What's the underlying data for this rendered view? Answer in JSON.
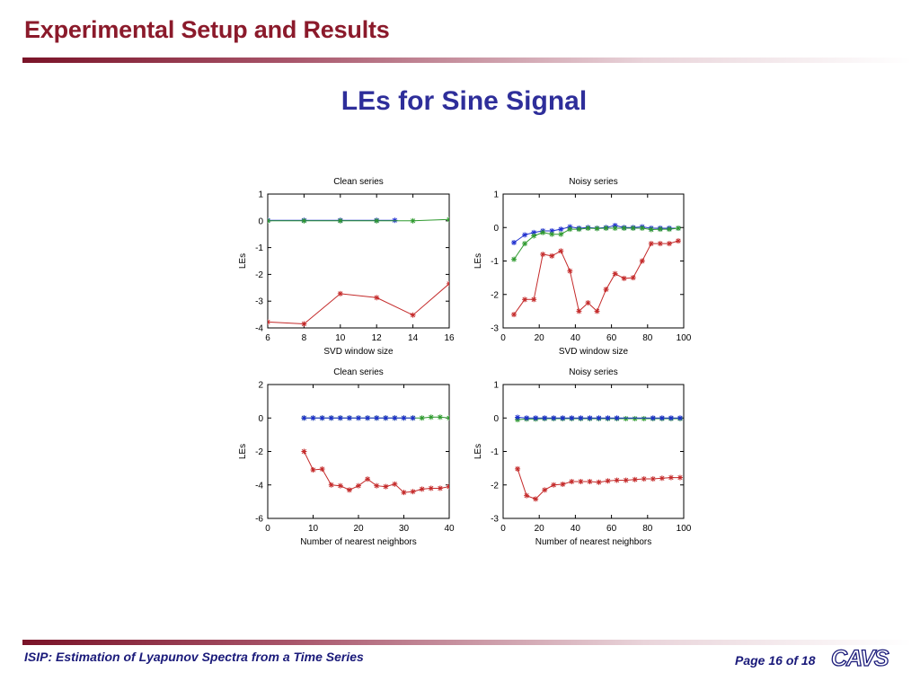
{
  "header": {
    "title": "Experimental Setup and Results"
  },
  "slide": {
    "title": "LEs for Sine Signal"
  },
  "footer": {
    "left_text": "ISIP: Estimation of Lyapunov Spectra from a Time Series",
    "page_text": "Page 16 of 18",
    "logo_text": "CAVS"
  },
  "colors": {
    "header_red": "#8b1a2b",
    "title_blue": "#2e2e9a",
    "series_blue": "#1f2fcf",
    "series_green": "#2f9a2f",
    "series_red": "#c42a2a"
  },
  "chart_data": [
    {
      "type": "line",
      "title": "Clean series",
      "xlabel": "SVD window size",
      "ylabel": "LEs",
      "xlim": [
        6,
        16
      ],
      "ylim": [
        -4,
        1
      ],
      "xticks": [
        6,
        8,
        10,
        12,
        14,
        16
      ],
      "yticks": [
        -4,
        -3,
        -2,
        -1,
        0,
        1
      ],
      "series": [
        {
          "color": "#1f2fcf",
          "x": [
            6,
            8,
            10,
            12,
            13
          ],
          "y": [
            0.02,
            0.02,
            0.02,
            0.02,
            0.02
          ]
        },
        {
          "color": "#2f9a2f",
          "x": [
            6,
            8,
            10,
            12,
            14,
            16
          ],
          "y": [
            0.0,
            0.0,
            0.0,
            0.0,
            0.0,
            0.05
          ]
        },
        {
          "color": "#c42a2a",
          "x": [
            6,
            8,
            10,
            12,
            14,
            16
          ],
          "y": [
            -3.78,
            -3.85,
            -2.72,
            -2.87,
            -3.52,
            -2.35
          ]
        }
      ]
    },
    {
      "type": "line",
      "title": "Noisy series",
      "xlabel": "SVD window size",
      "ylabel": "LEs",
      "xlim": [
        0,
        100
      ],
      "ylim": [
        -3,
        1
      ],
      "xticks": [
        0,
        20,
        40,
        60,
        80,
        100
      ],
      "yticks": [
        -3,
        -2,
        -1,
        0,
        1
      ],
      "series": [
        {
          "color": "#1f2fcf",
          "x": [
            6,
            12,
            17,
            22,
            27,
            32,
            37,
            42,
            47,
            52,
            57,
            62,
            67,
            72,
            77,
            82,
            87,
            92,
            97
          ],
          "y": [
            -0.45,
            -0.22,
            -0.15,
            -0.1,
            -0.1,
            -0.05,
            0.02,
            -0.02,
            0.0,
            -0.02,
            0.0,
            0.06,
            0.0,
            0.0,
            0.02,
            -0.02,
            -0.02,
            -0.02,
            -0.02
          ]
        },
        {
          "color": "#2f9a2f",
          "x": [
            6,
            12,
            17,
            22,
            27,
            32,
            37,
            42,
            47,
            52,
            57,
            62,
            67,
            72,
            77,
            82,
            87,
            92,
            97
          ],
          "y": [
            -0.95,
            -0.48,
            -0.25,
            -0.15,
            -0.2,
            -0.2,
            -0.05,
            -0.05,
            -0.02,
            -0.03,
            -0.02,
            -0.02,
            -0.02,
            -0.02,
            -0.02,
            -0.06,
            -0.05,
            -0.05,
            -0.02
          ]
        },
        {
          "color": "#c42a2a",
          "x": [
            6,
            12,
            17,
            22,
            27,
            32,
            37,
            42,
            47,
            52,
            57,
            62,
            67,
            72,
            77,
            82,
            87,
            92,
            97
          ],
          "y": [
            -2.6,
            -2.15,
            -2.15,
            -0.8,
            -0.85,
            -0.7,
            -1.3,
            -2.5,
            -2.25,
            -2.5,
            -1.85,
            -1.38,
            -1.52,
            -1.5,
            -1.0,
            -0.48,
            -0.48,
            -0.48,
            -0.4
          ]
        }
      ]
    },
    {
      "type": "line",
      "title": "Clean series",
      "xlabel": "Number of nearest neighbors",
      "ylabel": "LEs",
      "xlim": [
        0,
        40
      ],
      "ylim": [
        -6,
        2
      ],
      "xticks": [
        0,
        10,
        20,
        30,
        40
      ],
      "yticks": [
        -6,
        -4,
        -2,
        0,
        2
      ],
      "series": [
        {
          "color": "#2f9a2f",
          "x": [
            8,
            10,
            12,
            14,
            16,
            18,
            20,
            22,
            24,
            26,
            28,
            30,
            32,
            34,
            36,
            38,
            40
          ],
          "y": [
            0.0,
            0.0,
            0.0,
            0.0,
            0.0,
            0.0,
            0.0,
            0.0,
            0.0,
            0.0,
            0.0,
            0.0,
            0.0,
            0.0,
            0.05,
            0.05,
            0.0
          ]
        },
        {
          "color": "#1f2fcf",
          "x": [
            8,
            10,
            12,
            14,
            16,
            18,
            20,
            22,
            24,
            26,
            28,
            30,
            32
          ],
          "y": [
            0.0,
            0.0,
            0.0,
            0.0,
            0.0,
            0.0,
            0.0,
            0.0,
            0.0,
            0.0,
            0.0,
            0.0,
            0.0
          ]
        },
        {
          "color": "#c42a2a",
          "x": [
            8,
            10,
            12,
            14,
            16,
            18,
            20,
            22,
            24,
            26,
            28,
            30,
            32,
            34,
            36,
            38,
            40
          ],
          "y": [
            -2.0,
            -3.1,
            -3.05,
            -4.0,
            -4.05,
            -4.3,
            -4.05,
            -3.65,
            -4.05,
            -4.1,
            -3.95,
            -4.45,
            -4.4,
            -4.25,
            -4.2,
            -4.2,
            -4.1
          ]
        }
      ]
    },
    {
      "type": "line",
      "title": "Noisy series",
      "xlabel": "Number of nearest neighbors",
      "ylabel": "LEs",
      "xlim": [
        0,
        100
      ],
      "ylim": [
        -3,
        1
      ],
      "xticks": [
        0,
        20,
        40,
        60,
        80,
        100
      ],
      "yticks": [
        -3,
        -2,
        -1,
        0,
        1
      ],
      "series": [
        {
          "color": "#2f9a2f",
          "x": [
            8,
            13,
            18,
            23,
            28,
            33,
            38,
            43,
            48,
            53,
            58,
            63,
            68,
            73,
            78,
            83,
            88,
            93,
            98
          ],
          "y": [
            -0.05,
            -0.03,
            -0.03,
            -0.02,
            -0.02,
            -0.02,
            -0.02,
            -0.02,
            -0.02,
            -0.02,
            -0.02,
            -0.02,
            -0.02,
            -0.02,
            -0.02,
            -0.02,
            -0.02,
            -0.02,
            -0.02
          ]
        },
        {
          "color": "#1f2fcf",
          "x": [
            8,
            13,
            18,
            23,
            28,
            33,
            38,
            43,
            48,
            53,
            58,
            63,
            83,
            88,
            93,
            98
          ],
          "y": [
            0.02,
            0.0,
            0.0,
            0.0,
            0.0,
            0.0,
            0.0,
            0.0,
            0.0,
            0.0,
            0.0,
            0.0,
            0.0,
            0.0,
            0.0,
            0.0
          ]
        },
        {
          "color": "#c42a2a",
          "x": [
            8,
            13,
            18,
            23,
            28,
            33,
            38,
            43,
            48,
            53,
            58,
            63,
            68,
            73,
            78,
            83,
            88,
            93,
            98
          ],
          "y": [
            -1.52,
            -2.32,
            -2.42,
            -2.15,
            -2.0,
            -1.98,
            -1.9,
            -1.9,
            -1.9,
            -1.92,
            -1.88,
            -1.86,
            -1.86,
            -1.84,
            -1.82,
            -1.82,
            -1.8,
            -1.78,
            -1.78
          ]
        }
      ]
    }
  ]
}
